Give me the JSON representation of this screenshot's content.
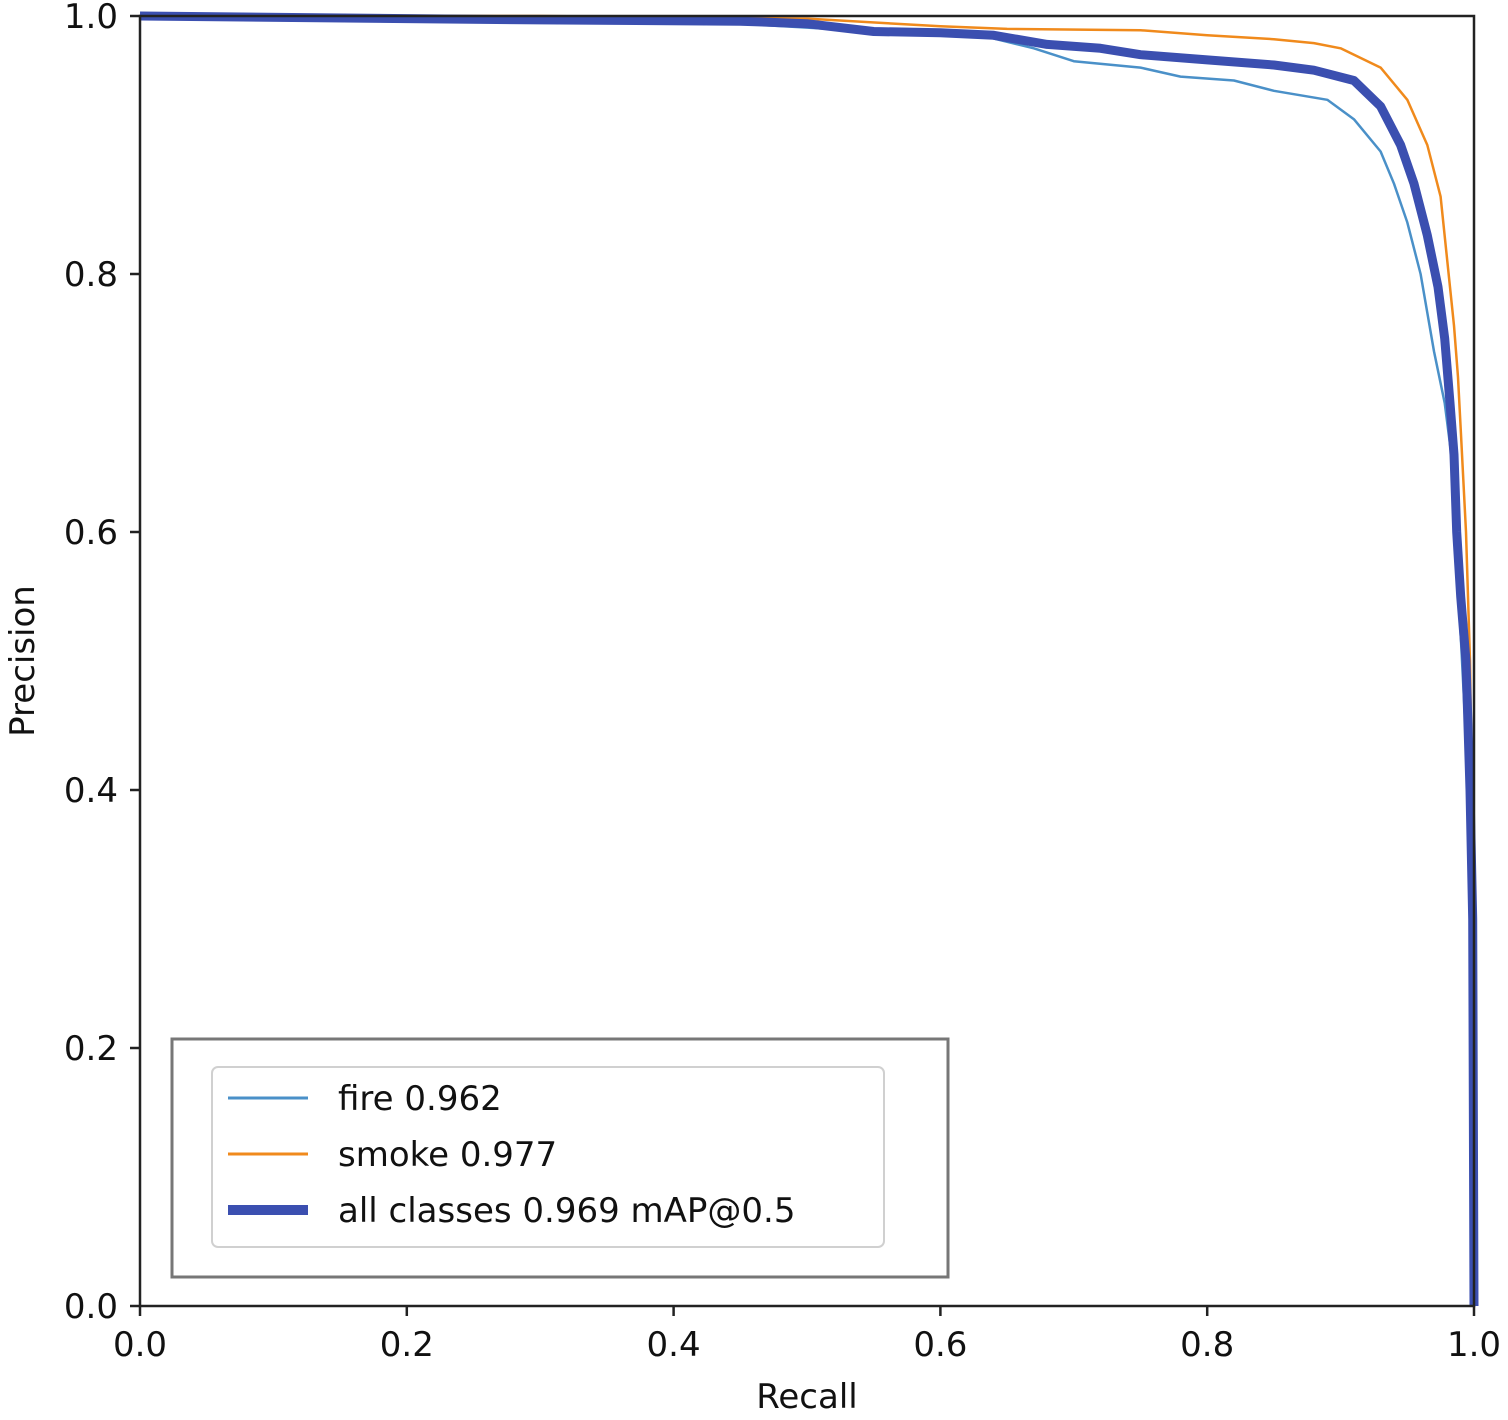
{
  "chart_data": {
    "type": "line",
    "title": "",
    "xlabel": "Recall",
    "ylabel": "Precision",
    "xlim": [
      0,
      1
    ],
    "ylim": [
      0,
      1
    ],
    "grid": false,
    "legend_placement": "lower-left",
    "x_ticks": [
      "0.0",
      "0.2",
      "0.4",
      "0.6",
      "0.8",
      "1.0"
    ],
    "y_ticks": [
      "0.0",
      "0.2",
      "0.4",
      "0.6",
      "0.8",
      "1.0"
    ],
    "series": [
      {
        "name": "fire",
        "label": "fire 0.962",
        "color": "#4a90c8",
        "points": [
          [
            0.0,
            1.0
          ],
          [
            0.1,
            1.0
          ],
          [
            0.3,
            0.997
          ],
          [
            0.45,
            0.994
          ],
          [
            0.55,
            0.988
          ],
          [
            0.63,
            0.985
          ],
          [
            0.67,
            0.975
          ],
          [
            0.7,
            0.965
          ],
          [
            0.75,
            0.96
          ],
          [
            0.78,
            0.953
          ],
          [
            0.82,
            0.95
          ],
          [
            0.85,
            0.942
          ],
          [
            0.89,
            0.935
          ],
          [
            0.91,
            0.92
          ],
          [
            0.93,
            0.895
          ],
          [
            0.94,
            0.87
          ],
          [
            0.95,
            0.84
          ],
          [
            0.96,
            0.8
          ],
          [
            0.965,
            0.77
          ],
          [
            0.97,
            0.74
          ],
          [
            0.978,
            0.7
          ],
          [
            0.983,
            0.66
          ],
          [
            0.987,
            0.6
          ],
          [
            0.99,
            0.52
          ],
          [
            0.995,
            0.42
          ],
          [
            0.998,
            0.3
          ],
          [
            1.0,
            0.0
          ]
        ]
      },
      {
        "name": "smoke",
        "label": "smoke 0.977",
        "color": "#f08a1c",
        "points": [
          [
            0.0,
            1.0
          ],
          [
            0.3,
            1.0
          ],
          [
            0.5,
            0.998
          ],
          [
            0.6,
            0.992
          ],
          [
            0.65,
            0.99
          ],
          [
            0.75,
            0.989
          ],
          [
            0.8,
            0.985
          ],
          [
            0.85,
            0.982
          ],
          [
            0.88,
            0.979
          ],
          [
            0.9,
            0.975
          ],
          [
            0.93,
            0.96
          ],
          [
            0.95,
            0.935
          ],
          [
            0.965,
            0.9
          ],
          [
            0.975,
            0.86
          ],
          [
            0.98,
            0.81
          ],
          [
            0.985,
            0.76
          ],
          [
            0.988,
            0.72
          ],
          [
            0.99,
            0.68
          ],
          [
            0.994,
            0.6
          ],
          [
            0.997,
            0.5
          ],
          [
            0.999,
            0.35
          ],
          [
            1.0,
            0.0
          ]
        ]
      },
      {
        "name": "all classes",
        "label": "all classes 0.969 mAP@0.5",
        "color": "#3b4fb0",
        "points": [
          [
            0.0,
            1.0
          ],
          [
            0.3,
            0.997
          ],
          [
            0.45,
            0.996
          ],
          [
            0.5,
            0.994
          ],
          [
            0.55,
            0.988
          ],
          [
            0.6,
            0.987
          ],
          [
            0.64,
            0.985
          ],
          [
            0.68,
            0.978
          ],
          [
            0.72,
            0.975
          ],
          [
            0.75,
            0.97
          ],
          [
            0.8,
            0.966
          ],
          [
            0.85,
            0.962
          ],
          [
            0.88,
            0.958
          ],
          [
            0.91,
            0.95
          ],
          [
            0.93,
            0.93
          ],
          [
            0.945,
            0.9
          ],
          [
            0.955,
            0.87
          ],
          [
            0.965,
            0.83
          ],
          [
            0.973,
            0.79
          ],
          [
            0.978,
            0.75
          ],
          [
            0.982,
            0.7
          ],
          [
            0.985,
            0.66
          ],
          [
            0.987,
            0.6
          ],
          [
            0.99,
            0.55
          ],
          [
            0.994,
            0.5
          ],
          [
            0.997,
            0.4
          ],
          [
            0.999,
            0.3
          ],
          [
            1.0,
            0.0
          ]
        ]
      }
    ]
  }
}
